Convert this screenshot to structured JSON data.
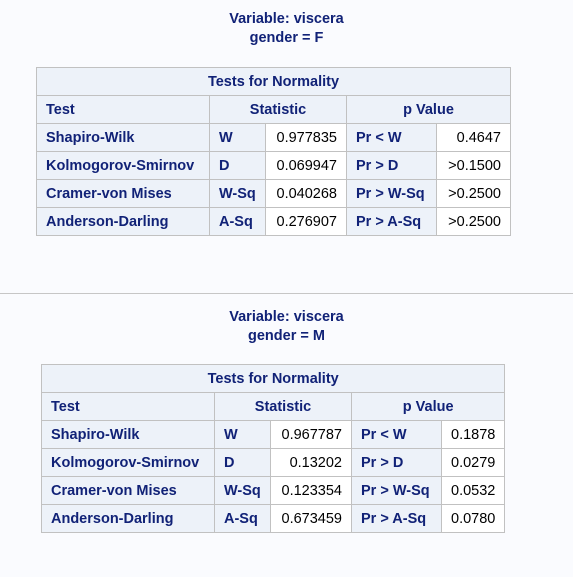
{
  "tables": [
    {
      "variable_title": "Variable: viscera",
      "group_title": "gender = F",
      "caption": "Tests for Normality",
      "headers": {
        "test": "Test",
        "statistic": "Statistic",
        "pvalue": "p Value"
      },
      "rows": [
        {
          "test": "Shapiro-Wilk",
          "stat_label": "W",
          "stat_value": "0.977835",
          "p_label": "Pr < W",
          "p_value": "0.4647"
        },
        {
          "test": "Kolmogorov-Smirnov",
          "stat_label": "D",
          "stat_value": "0.069947",
          "p_label": "Pr > D",
          "p_value": ">0.1500"
        },
        {
          "test": "Cramer-von Mises",
          "stat_label": "W-Sq",
          "stat_value": "0.040268",
          "p_label": "Pr > W-Sq",
          "p_value": ">0.2500"
        },
        {
          "test": "Anderson-Darling",
          "stat_label": "A-Sq",
          "stat_value": "0.276907",
          "p_label": "Pr > A-Sq",
          "p_value": ">0.2500"
        }
      ]
    },
    {
      "variable_title": "Variable: viscera",
      "group_title": "gender = M",
      "caption": "Tests for Normality",
      "headers": {
        "test": "Test",
        "statistic": "Statistic",
        "pvalue": "p Value"
      },
      "rows": [
        {
          "test": "Shapiro-Wilk",
          "stat_label": "W",
          "stat_value": "0.967787",
          "p_label": "Pr < W",
          "p_value": "0.1878"
        },
        {
          "test": "Kolmogorov-Smirnov",
          "stat_label": "D",
          "stat_value": "0.13202",
          "p_label": "Pr > D",
          "p_value": "0.0279"
        },
        {
          "test": "Cramer-von Mises",
          "stat_label": "W-Sq",
          "stat_value": "0.123354",
          "p_label": "Pr > W-Sq",
          "p_value": "0.0532"
        },
        {
          "test": "Anderson-Darling",
          "stat_label": "A-Sq",
          "stat_value": "0.673459",
          "p_label": "Pr > A-Sq",
          "p_value": "0.0780"
        }
      ]
    }
  ]
}
